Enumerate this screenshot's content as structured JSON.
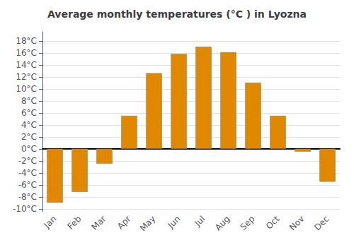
{
  "chart_data": {
    "type": "bar",
    "title": "Average monthly temperatures (°C ) in Lyozna",
    "categories": [
      "Jan",
      "Feb",
      "Mar",
      "Apr",
      "May",
      "Jun",
      "Jul",
      "Aug",
      "Sep",
      "Oct",
      "Nov",
      "Dec"
    ],
    "values": [
      -9.0,
      -7.2,
      -2.5,
      5.5,
      12.6,
      15.8,
      17.0,
      16.1,
      11.0,
      5.5,
      -0.5,
      -5.5
    ],
    "color": "#E08800",
    "ylim": [
      -10.5,
      19.5
    ],
    "yticks": [
      {
        "value": -10,
        "label": "-10°C"
      },
      {
        "value": -8,
        "label": "-8°C"
      },
      {
        "value": -6,
        "label": "-6°C"
      },
      {
        "value": -4,
        "label": "-4°C"
      },
      {
        "value": -2,
        "label": "-2°C"
      },
      {
        "value": 0,
        "label": "0°C"
      },
      {
        "value": 2,
        "label": "2°C"
      },
      {
        "value": 4,
        "label": "4°C"
      },
      {
        "value": 6,
        "label": "6°C"
      },
      {
        "value": 8,
        "label": "8°C"
      },
      {
        "value": 10,
        "label": "10°C"
      },
      {
        "value": 12,
        "label": "12°C"
      },
      {
        "value": 14,
        "label": "14°C"
      },
      {
        "value": 16,
        "label": "16°C"
      },
      {
        "value": 18,
        "label": "18°C"
      }
    ],
    "grid": true
  }
}
